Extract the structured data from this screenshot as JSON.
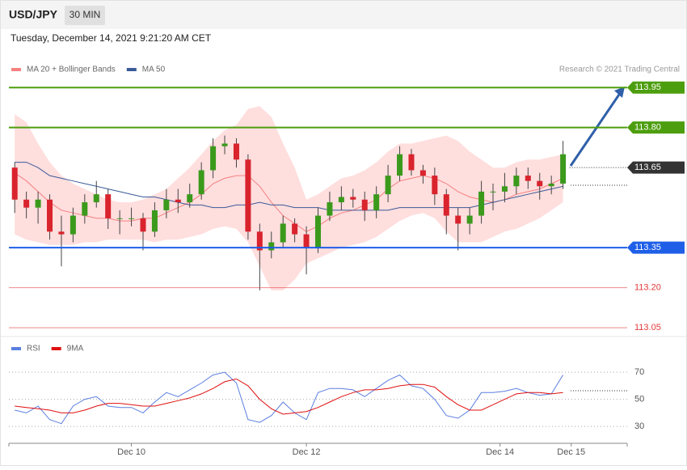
{
  "header": {
    "symbol": "USD/JPY",
    "timeframe": "30 MIN",
    "timestamp": "Tuesday, December 14, 2021 9:21:20 AM CET"
  },
  "chart_data": [
    {
      "type": "candlestick",
      "credit": "Research © 2021 Trading Central",
      "xlim": [
        -0.5,
        52.5
      ],
      "ylim": [
        113.02,
        113.99
      ],
      "up_color": "#3b9a1c",
      "down_color": "#d9232d",
      "candles": {
        "open": [
          113.65,
          113.53,
          113.5,
          113.53,
          113.41,
          113.4,
          113.47,
          113.52,
          113.55,
          113.46,
          113.46,
          113.46,
          113.41,
          113.49,
          113.53,
          113.52,
          113.55,
          113.64,
          113.73,
          113.74,
          113.68,
          113.41,
          113.34,
          113.37,
          113.44,
          113.4,
          113.35,
          113.47,
          113.52,
          113.54,
          113.53,
          113.49,
          113.55,
          113.62,
          113.7,
          113.64,
          113.62,
          113.55,
          113.47,
          113.44,
          113.47,
          113.56,
          113.56,
          113.58,
          113.62,
          113.6,
          113.58,
          113.59
        ],
        "high": [
          113.67,
          113.56,
          113.56,
          113.55,
          113.47,
          113.5,
          113.55,
          113.6,
          113.57,
          113.49,
          113.5,
          113.48,
          113.52,
          113.57,
          113.57,
          113.59,
          113.67,
          113.76,
          113.77,
          113.76,
          113.7,
          113.44,
          113.41,
          113.47,
          113.46,
          113.43,
          113.5,
          113.56,
          113.58,
          113.57,
          113.56,
          113.58,
          113.66,
          113.73,
          113.72,
          113.66,
          113.65,
          113.57,
          113.5,
          113.5,
          113.6,
          113.59,
          113.63,
          113.65,
          113.65,
          113.63,
          113.62,
          113.75
        ],
        "low": [
          113.48,
          113.46,
          113.44,
          113.38,
          113.28,
          113.37,
          113.44,
          113.5,
          113.42,
          113.4,
          113.43,
          113.34,
          113.39,
          113.46,
          113.48,
          113.5,
          113.53,
          113.61,
          113.7,
          113.65,
          113.38,
          113.19,
          113.31,
          113.35,
          113.37,
          113.25,
          113.33,
          113.45,
          113.49,
          113.5,
          113.45,
          113.46,
          113.52,
          113.6,
          113.62,
          113.59,
          113.51,
          113.4,
          113.34,
          113.4,
          113.44,
          113.49,
          113.52,
          113.55,
          113.57,
          113.53,
          113.55,
          113.57
        ],
        "close": [
          113.53,
          113.5,
          113.53,
          113.41,
          113.4,
          113.47,
          113.52,
          113.55,
          113.46,
          113.46,
          113.46,
          113.41,
          113.49,
          113.53,
          113.52,
          113.55,
          113.64,
          113.73,
          113.74,
          113.68,
          113.41,
          113.34,
          113.37,
          113.44,
          113.4,
          113.35,
          113.47,
          113.52,
          113.54,
          113.53,
          113.49,
          113.55,
          113.62,
          113.7,
          113.64,
          113.62,
          113.55,
          113.47,
          113.44,
          113.47,
          113.56,
          113.56,
          113.58,
          113.62,
          113.6,
          113.58,
          113.59,
          113.7
        ]
      },
      "series": [
        {
          "name": "MA 20 + Bollinger Bands",
          "color": "#f58080",
          "band_color": "#ffdede",
          "values": [
            113.63,
            113.6,
            113.56,
            113.52,
            113.49,
            113.48,
            113.47,
            113.46,
            113.46,
            113.45,
            113.45,
            113.46,
            113.46,
            113.48,
            113.5,
            113.52,
            113.55,
            113.59,
            113.61,
            113.62,
            113.62,
            113.58,
            113.52,
            113.47,
            113.44,
            113.41,
            113.43,
            113.46,
            113.48,
            113.49,
            113.51,
            113.53,
            113.57,
            113.6,
            113.61,
            113.62,
            113.61,
            113.59,
            113.56,
            113.54,
            113.53,
            113.52,
            113.53,
            113.55,
            113.56,
            113.57,
            113.59,
            113.61
          ],
          "upper": [
            113.85,
            113.82,
            113.74,
            113.67,
            113.62,
            113.59,
            113.57,
            113.55,
            113.53,
            113.52,
            113.52,
            113.53,
            113.55,
            113.57,
            113.61,
            113.65,
            113.7,
            113.75,
            113.79,
            113.81,
            113.87,
            113.88,
            113.84,
            113.74,
            113.65,
            113.53,
            113.55,
            113.58,
            113.61,
            113.62,
            113.64,
            113.67,
            113.71,
            113.74,
            113.74,
            113.75,
            113.76,
            113.77,
            113.75,
            113.71,
            113.68,
            113.65,
            113.65,
            113.67,
            113.68,
            113.68,
            113.69,
            113.7
          ],
          "lower": [
            113.4,
            113.38,
            113.37,
            113.36,
            113.36,
            113.36,
            113.37,
            113.37,
            113.38,
            113.38,
            113.38,
            113.38,
            113.37,
            113.38,
            113.38,
            113.39,
            113.4,
            113.42,
            113.43,
            113.42,
            113.37,
            113.28,
            113.19,
            113.19,
            113.23,
            113.29,
            113.31,
            113.33,
            113.35,
            113.36,
            113.37,
            113.39,
            113.42,
            113.45,
            113.47,
            113.48,
            113.46,
            113.41,
            113.37,
            113.37,
            113.37,
            113.39,
            113.41,
            113.42,
            113.44,
            113.46,
            113.49,
            113.52
          ]
        },
        {
          "name": "MA 50",
          "color": "#3a5a98",
          "values": [
            113.67,
            113.67,
            113.65,
            113.62,
            113.61,
            113.6,
            113.59,
            113.58,
            113.57,
            113.56,
            113.55,
            113.54,
            113.54,
            113.53,
            113.52,
            113.51,
            113.51,
            113.5,
            113.5,
            113.51,
            113.51,
            113.52,
            113.51,
            113.51,
            113.5,
            113.5,
            113.5,
            113.49,
            113.49,
            113.49,
            113.49,
            113.49,
            113.49,
            113.5,
            113.5,
            113.5,
            113.5,
            113.5,
            113.5,
            113.5,
            113.51,
            113.52,
            113.53,
            113.54,
            113.55,
            113.56,
            113.57,
            113.58
          ]
        }
      ],
      "levels": [
        {
          "value": 113.95,
          "label": "113.95",
          "color": "#4d9e0e",
          "tag": true
        },
        {
          "value": 113.8,
          "label": "113.80",
          "color": "#4d9e0e",
          "tag": true
        },
        {
          "value": 113.65,
          "label": "113.65",
          "color": "#333333",
          "tag": true,
          "style": "dotted"
        },
        {
          "value": 113.35,
          "label": "113.35",
          "color": "#1f5fe8",
          "tag": true
        },
        {
          "value": 113.2,
          "label": "113.20",
          "color": "#e23a3a",
          "tag": false
        },
        {
          "value": 113.05,
          "label": "113.05",
          "color": "#e23a3a",
          "tag": false
        }
      ]
    },
    {
      "type": "line",
      "xlim": [
        -0.5,
        52.5
      ],
      "ylim": [
        17.5,
        94
      ],
      "yticks": [
        30,
        50,
        70
      ],
      "xticks": [
        {
          "value": 10,
          "label": "Dec 10"
        },
        {
          "value": 25,
          "label": "Dec 12"
        },
        {
          "value": 41.6,
          "label": "Dec 14"
        },
        {
          "value": 47.7,
          "label": "Dec 15"
        }
      ],
      "series": [
        {
          "name": "RSI",
          "color": "#5b7fe0",
          "values": [
            42,
            40,
            45,
            35,
            32,
            45,
            50,
            52,
            45,
            44,
            44,
            40,
            48,
            55,
            52,
            57,
            62,
            68,
            70,
            62,
            35,
            33,
            38,
            48,
            40,
            35,
            55,
            58,
            58,
            57,
            52,
            58,
            64,
            68,
            60,
            58,
            50,
            38,
            36,
            42,
            55,
            55,
            56,
            58,
            55,
            53,
            54,
            68
          ]
        },
        {
          "name": "9MA",
          "color": "#e01010",
          "values": [
            45,
            44,
            43,
            42,
            40,
            40,
            42,
            45,
            47,
            47,
            46,
            45,
            45,
            47,
            49,
            51,
            54,
            58,
            63,
            65,
            60,
            50,
            43,
            39,
            40,
            41,
            44,
            48,
            52,
            55,
            57,
            57,
            58,
            60,
            61,
            61,
            59,
            52,
            46,
            42,
            42,
            46,
            50,
            54,
            55,
            55,
            54,
            55
          ]
        }
      ]
    }
  ]
}
